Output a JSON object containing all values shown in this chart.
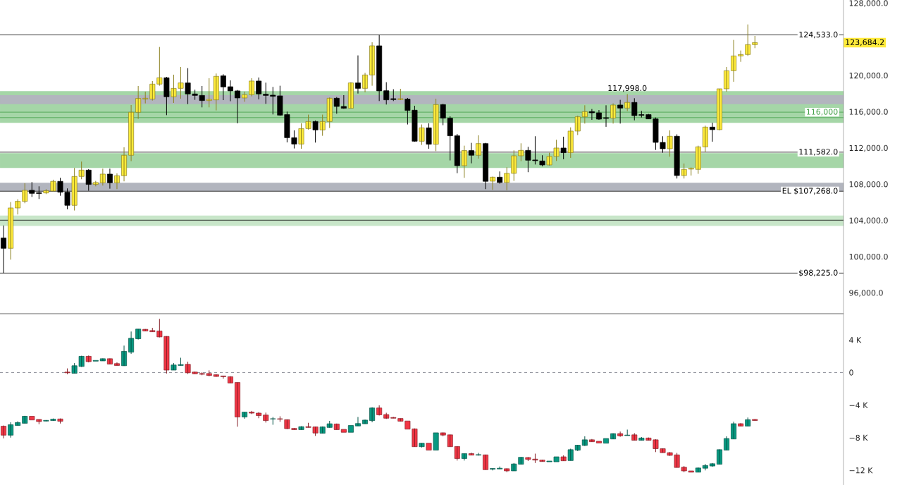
{
  "chart_data": [
    {
      "type": "candlestick",
      "categories": [
        null,
        null,
        null,
        null,
        null,
        null,
        null,
        null,
        null,
        null,
        null,
        null,
        null,
        null,
        null,
        null,
        null,
        null,
        null,
        null,
        null,
        null,
        null,
        null,
        null,
        null,
        null,
        null,
        null,
        null,
        null,
        null,
        null,
        null,
        null,
        null,
        null,
        null,
        null,
        null,
        null,
        null,
        null,
        null,
        null,
        null,
        null,
        null,
        null,
        null,
        null,
        null,
        null,
        null,
        null,
        null,
        null,
        null,
        null,
        null,
        null,
        null,
        null,
        null,
        null,
        null,
        null,
        null,
        null,
        null,
        null,
        null,
        null,
        null,
        null,
        null,
        null,
        null,
        null,
        null,
        null,
        null,
        null,
        null,
        null,
        null,
        null,
        null,
        null,
        null,
        null,
        null,
        null,
        null,
        null,
        null,
        null,
        null,
        null,
        null,
        null,
        null,
        null,
        null,
        null,
        null,
        null,
        null,
        null,
        null,
        null,
        null,
        null,
        null,
        null,
        null,
        null,
        null,
        null
      ],
      "ohlc": [
        [
          102100,
          103480,
          98225,
          100960
        ],
        [
          100960,
          106070,
          99710,
          105420
        ],
        [
          105420,
          106380,
          104700,
          106150
        ],
        [
          106150,
          108150,
          105940,
          107370
        ],
        [
          107370,
          108280,
          106640,
          107030
        ],
        [
          107110,
          107810,
          106410,
          107010
        ],
        [
          107080,
          107500,
          106950,
          107320
        ],
        [
          107290,
          108540,
          107240,
          108360
        ],
        [
          108360,
          108750,
          106770,
          107160
        ],
        [
          107160,
          107580,
          105270,
          105710
        ],
        [
          105710,
          109840,
          105140,
          108900
        ],
        [
          108900,
          110540,
          108590,
          109600
        ],
        [
          109600,
          109710,
          107320,
          108020
        ],
        [
          108020,
          108410,
          107810,
          108230
        ],
        [
          108200,
          109760,
          107890,
          109160
        ],
        [
          109160,
          109760,
          107550,
          108200
        ],
        [
          108200,
          109240,
          107500,
          108980
        ],
        [
          108980,
          112120,
          108360,
          111240
        ],
        [
          111240,
          116790,
          110590,
          115990
        ],
        [
          115990,
          118890,
          115260,
          117520
        ],
        [
          117440,
          118270,
          116970,
          117540
        ],
        [
          117440,
          119440,
          117280,
          119100
        ],
        [
          119100,
          123200,
          118920,
          119800
        ],
        [
          119800,
          119900,
          115670,
          117700
        ],
        [
          117700,
          120140,
          117020,
          118630
        ],
        [
          118630,
          120990,
          117490,
          119230
        ],
        [
          119230,
          120860,
          116890,
          118010
        ],
        [
          118010,
          118480,
          117360,
          117850
        ],
        [
          117850,
          118890,
          116530,
          117280
        ],
        [
          117280,
          119750,
          116530,
          117410
        ],
        [
          117360,
          120270,
          116190,
          119960
        ],
        [
          120010,
          120190,
          117330,
          118790
        ],
        [
          118810,
          119510,
          117210,
          118350
        ],
        [
          118350,
          118450,
          114770,
          117570
        ],
        [
          117570,
          118270,
          117150,
          117930
        ],
        [
          117930,
          119750,
          117750,
          119440
        ],
        [
          119440,
          119830,
          117410,
          118010
        ],
        [
          117980,
          119260,
          116920,
          117850
        ],
        [
          117880,
          118790,
          115750,
          117750
        ],
        [
          117800,
          118920,
          115600,
          115670
        ],
        [
          115730,
          116060,
          112660,
          113180
        ],
        [
          113180,
          113990,
          111990,
          112480
        ],
        [
          112480,
          114770,
          111960,
          114190
        ],
        [
          114190,
          115730,
          114070,
          114970
        ],
        [
          114970,
          115080,
          112640,
          114040
        ],
        [
          114040,
          115730,
          113390,
          114970
        ],
        [
          114970,
          117620,
          114250,
          117540
        ],
        [
          117540,
          117670,
          115830,
          116630
        ],
        [
          116630,
          117880,
          116370,
          116430
        ],
        [
          116430,
          119310,
          116400,
          119230
        ],
        [
          119230,
          122270,
          118060,
          118630
        ],
        [
          118630,
          120340,
          118190,
          120110
        ],
        [
          120110,
          123720,
          118920,
          123330
        ],
        [
          123330,
          124533,
          117230,
          118350
        ],
        [
          118370,
          119310,
          116840,
          117360
        ],
        [
          117490,
          118530,
          117230,
          117390
        ],
        [
          117390,
          118580,
          117330,
          117490
        ],
        [
          117440,
          117570,
          114640,
          116190
        ],
        [
          116220,
          116710,
          112740,
          112790
        ],
        [
          112790,
          114640,
          112380,
          114270
        ],
        [
          114270,
          114770,
          111960,
          112460
        ],
        [
          112460,
          117490,
          111700,
          116840
        ],
        [
          116840,
          116920,
          114560,
          115340
        ],
        [
          115340,
          115540,
          110670,
          113390
        ],
        [
          113390,
          113600,
          109260,
          110090
        ],
        [
          110090,
          112300,
          108750,
          111760
        ],
        [
          111760,
          112610,
          110350,
          111240
        ],
        [
          111240,
          113440,
          110870,
          112530
        ],
        [
          112530,
          112610,
          107500,
          108360
        ],
        [
          108380,
          108880,
          107420,
          108820
        ],
        [
          108820,
          109450,
          108100,
          108230
        ],
        [
          108230,
          109910,
          107370,
          109240
        ],
        [
          109240,
          111780,
          108410,
          111180
        ],
        [
          111180,
          112560,
          110590,
          111780
        ],
        [
          111780,
          112170,
          109370,
          110690
        ],
        [
          110720,
          113340,
          110220,
          110640
        ],
        [
          110610,
          111240,
          110020,
          110170
        ],
        [
          110170,
          111520,
          110090,
          111110
        ],
        [
          111110,
          112950,
          110610,
          112040
        ],
        [
          112040,
          113290,
          110800,
          111520
        ],
        [
          111520,
          114320,
          110950,
          113910
        ],
        [
          113910,
          115620,
          113470,
          115490
        ],
        [
          115490,
          116760,
          114740,
          116060
        ],
        [
          116060,
          116350,
          115150,
          115930
        ],
        [
          115930,
          116240,
          115150,
          115230
        ],
        [
          115390,
          116760,
          114380,
          115310
        ],
        [
          115340,
          116970,
          114740,
          116790
        ],
        [
          116790,
          117360,
          114740,
          116450
        ],
        [
          116450,
          117998,
          116120,
          117080
        ],
        [
          117080,
          117540,
          115100,
          115620
        ],
        [
          115730,
          116140,
          115410,
          115650
        ],
        [
          115730,
          115800,
          115230,
          115260
        ],
        [
          115260,
          115410,
          111830,
          112660
        ],
        [
          112660,
          113340,
          111520,
          111960
        ],
        [
          111960,
          113990,
          111080,
          113340
        ],
        [
          113340,
          113550,
          108670,
          109000
        ],
        [
          109000,
          110330,
          108670,
          109680
        ],
        [
          109710,
          109890,
          109000,
          109810
        ],
        [
          109680,
          112300,
          109190,
          112170
        ],
        [
          112170,
          114510,
          111570,
          114350
        ],
        [
          114350,
          114840,
          112740,
          114070
        ],
        [
          114070,
          118580,
          113990,
          118580
        ],
        [
          118580,
          120990,
          118270,
          120580
        ],
        [
          120580,
          123980,
          119360,
          122210
        ],
        [
          122210,
          122810,
          121560,
          122370
        ],
        [
          122370,
          125690,
          122210,
          123460
        ],
        [
          123460,
          124420,
          123070,
          123684.2
        ],
        null,
        null,
        null,
        null,
        null,
        null,
        null,
        null,
        null,
        null,
        null,
        null
      ],
      "colors": [
        "#000000",
        "#ffeb3b",
        "#ffeb3b",
        "#ffeb3b",
        "#000000",
        "#000000",
        "#ffeb3b",
        "#ffeb3b",
        "#000000",
        "#000000",
        "#ffeb3b",
        "#ffeb3b",
        "#000000",
        "#ffeb3b",
        "#ffeb3b",
        "#000000",
        "#ffeb3b",
        "#ffeb3b",
        "#ffeb3b",
        "#ffeb3b",
        "#ffeb3b",
        "#ffeb3b",
        "#ffeb3b",
        "#000000",
        "#ffeb3b",
        "#ffeb3b",
        "#000000",
        "#000000",
        "#000000",
        "#ffeb3b",
        "#ffeb3b",
        "#000000",
        "#000000",
        "#000000",
        "#ffeb3b",
        "#ffeb3b",
        "#000000",
        "#000000",
        "#000000",
        "#000000",
        "#000000",
        "#000000",
        "#ffeb3b",
        "#ffeb3b",
        "#000000",
        "#ffeb3b",
        "#ffeb3b",
        "#000000",
        "#000000",
        "#ffeb3b",
        "#000000",
        "#ffeb3b",
        "#ffeb3b",
        "#000000",
        "#000000",
        "#000000",
        "#ffeb3b",
        "#000000",
        "#000000",
        "#ffeb3b",
        "#000000",
        "#ffeb3b",
        "#000000",
        "#000000",
        "#000000",
        "#ffeb3b",
        "#000000",
        "#ffeb3b",
        "#000000",
        "#ffeb3b",
        "#000000",
        "#ffeb3b",
        "#ffeb3b",
        "#ffeb3b",
        "#000000",
        "#000000",
        "#000000",
        "#ffeb3b",
        "#ffeb3b",
        "#000000",
        "#ffeb3b",
        "#ffeb3b",
        "#ffeb3b",
        "#000000",
        "#000000",
        "#000000",
        "#ffeb3b",
        "#000000",
        "#ffeb3b",
        "#000000",
        "#000000",
        "#000000",
        "#000000",
        "#000000",
        "#ffeb3b",
        "#000000",
        "#ffeb3b",
        "#ffeb3b",
        "#ffeb3b",
        "#ffeb3b",
        "#000000",
        "#ffeb3b",
        "#ffeb3b",
        "#ffeb3b",
        "#ffeb3b",
        "#ffeb3b",
        "#ffeb3b",
        null,
        null,
        null,
        null,
        null,
        null,
        null,
        null,
        null,
        null,
        null,
        null
      ],
      "ylim": [
        93740,
        128390
      ],
      "yticks": [
        {
          "value": 96000,
          "label": "96,000.0"
        },
        {
          "value": 100000,
          "label": "100,000.0"
        },
        {
          "value": 104000,
          "label": "104,000.0"
        },
        {
          "value": 108000,
          "label": "108,000.0"
        },
        {
          "value": 112000,
          "label": "112,000.0"
        },
        {
          "value": 116000,
          "label": "116,000.0"
        },
        {
          "value": 120000,
          "label": "120,000.0"
        },
        {
          "value": 128000,
          "label": "128,000.0"
        }
      ],
      "tick_labels": "y",
      "bands": [
        {
          "axis": "y",
          "from": 103430,
          "to": 104590,
          "color": "#c8e6c9"
        },
        {
          "axis": "y",
          "from": 114820,
          "to": 118320,
          "color": "#a5d6a7"
        },
        {
          "axis": "y",
          "from": 109840,
          "to": 111470,
          "color": "#a5d6a7"
        },
        {
          "axis": "y",
          "from": 116890,
          "to": 117880,
          "color": "#b2b5be"
        },
        {
          "axis": "y",
          "from": 107290,
          "to": 108200,
          "color": "#b2b5be"
        }
      ],
      "ref_lines": [
        {
          "axis": "y",
          "value": 124533,
          "label": "124,533.0",
          "color": "#000000"
        },
        {
          "axis": "y",
          "value": 116000,
          "label": "116,000",
          "color": "#43a047"
        },
        {
          "axis": "y",
          "value": 115400,
          "color": "#43a047"
        },
        {
          "axis": "y",
          "value": 111582,
          "label": "111,582.0",
          "color": "#000000"
        },
        {
          "axis": "y",
          "value": 107268,
          "label": "EL $107,268.0",
          "color": "#000000"
        },
        {
          "axis": "y",
          "value": 104070,
          "color": "#000000"
        },
        {
          "axis": "y",
          "value": 98225,
          "label": "$98,225.0",
          "color": "#000000"
        }
      ],
      "annotations": [
        {
          "text": "117,998.0",
          "y": 117998
        },
        "123,684.2"
      ]
    },
    {
      "type": "candlestick",
      "categories": [
        null,
        null,
        null,
        null,
        null,
        null,
        null,
        null,
        null,
        null,
        null,
        null,
        null,
        null,
        null,
        null,
        null,
        null,
        null,
        null,
        null,
        null,
        null,
        null,
        null,
        null,
        null,
        null,
        null,
        null,
        null,
        null,
        null,
        null,
        null,
        null,
        null,
        null,
        null,
        null,
        null,
        null,
        null,
        null,
        null,
        null,
        null,
        null,
        null,
        null,
        null,
        null,
        null,
        null,
        null,
        null,
        null,
        null,
        null,
        null,
        null,
        null,
        null,
        null,
        null,
        null,
        null,
        null,
        null,
        null,
        null,
        null,
        null,
        null,
        null,
        null,
        null,
        null,
        null,
        null,
        null,
        null,
        null,
        null,
        null,
        null,
        null,
        null,
        null,
        null,
        null,
        null,
        null,
        null,
        null,
        null,
        null,
        null,
        null,
        null,
        null,
        null,
        null,
        null,
        null,
        null,
        null,
        null,
        null,
        null,
        null,
        null,
        null,
        null,
        null,
        null,
        null,
        null,
        null
      ],
      "ohlc": [
        [
          -6590,
          -6500,
          -8080,
          -7690
        ],
        [
          -7690,
          -6110,
          -7990,
          -6410
        ],
        [
          -6500,
          -5990,
          -6500,
          -6140
        ],
        [
          -6230,
          -5310,
          -6230,
          -5370
        ],
        [
          -5370,
          -5370,
          -5820,
          -5820
        ],
        [
          -5760,
          -5760,
          -6350,
          -6020
        ],
        [
          -5960,
          -5840,
          -5990,
          -5870
        ],
        [
          -5900,
          -5640,
          -5930,
          -5730
        ],
        [
          -5700,
          -5640,
          -6260,
          -5990
        ],
        [
          60,
          510,
          -210,
          -30
        ],
        [
          -90,
          1160,
          -90,
          840
        ],
        [
          750,
          2060,
          690,
          2000
        ],
        [
          2000,
          2090,
          1250,
          1340
        ],
        [
          1400,
          1490,
          1400,
          1490
        ],
        [
          1430,
          1730,
          1430,
          1700
        ],
        [
          1700,
          1730,
          1040,
          1040
        ],
        [
          1100,
          1250,
          870,
          870
        ],
        [
          840,
          3310,
          810,
          2600
        ],
        [
          2510,
          5040,
          2300,
          4210
        ],
        [
          4150,
          5340,
          4060,
          5340
        ],
        [
          5310,
          5340,
          5100,
          5100
        ],
        [
          5160,
          5490,
          5010,
          5010
        ],
        [
          5100,
          6590,
          4320,
          4380
        ],
        [
          4440,
          4470,
          -120,
          300
        ],
        [
          300,
          1160,
          300,
          930
        ],
        [
          870,
          1820,
          870,
          980
        ],
        [
          1010,
          1340,
          -180,
          -30
        ],
        [
          60,
          120,
          -150,
          -150
        ],
        [
          -120,
          30,
          -330,
          -210
        ],
        [
          -120,
          270,
          -450,
          -360
        ],
        [
          -270,
          -210,
          -510,
          -480
        ],
        [
          -420,
          -420,
          -750,
          -510
        ],
        [
          -510,
          -450,
          -1280,
          -1280
        ],
        [
          -1220,
          -1220,
          -6650,
          -5460
        ],
        [
          -5460,
          -4860,
          -5670,
          -4860
        ],
        [
          -4860,
          -4710,
          -5100,
          -4980
        ],
        [
          -4980,
          -4860,
          -5610,
          -5280
        ],
        [
          -5220,
          -4920,
          -6140,
          -5900
        ],
        [
          -5700,
          -5460,
          -6410,
          -5670
        ],
        [
          -5670,
          -5370,
          -6050,
          -5730
        ],
        [
          -5790,
          -5760,
          -6950,
          -6890
        ],
        [
          -6860,
          -6830,
          -7010,
          -7010
        ],
        [
          -7010,
          -6590,
          -7010,
          -6650
        ],
        [
          -6650,
          -6170,
          -6740,
          -6740
        ],
        [
          -6680,
          -6650,
          -7780,
          -7430
        ],
        [
          -7460,
          -6620,
          -7460,
          -6680
        ],
        [
          -6740,
          -5930,
          -6770,
          -6290
        ],
        [
          -6320,
          -6260,
          -7010,
          -7010
        ],
        [
          -6980,
          -6980,
          -7340,
          -7340
        ],
        [
          -7340,
          -6500,
          -7340,
          -6500
        ],
        [
          -6560,
          -5460,
          -6560,
          -6260
        ],
        [
          -6290,
          -5790,
          -6290,
          -5840
        ],
        [
          -5900,
          -4260,
          -6110,
          -4350
        ],
        [
          -4350,
          -4030,
          -5280,
          -5190
        ],
        [
          -5160,
          -4940,
          -5700,
          -5610
        ],
        [
          -5520,
          -5460,
          -5610,
          -5610
        ],
        [
          -5640,
          -5640,
          -6010,
          -5980
        ],
        [
          -5950,
          -5950,
          -6950,
          -6950
        ],
        [
          -6920,
          -6860,
          -9110,
          -9110
        ],
        [
          -9110,
          -8680,
          -9200,
          -8680
        ],
        [
          -8680,
          -8680,
          -9530,
          -9530
        ],
        [
          -9530,
          -7400,
          -9530,
          -7400
        ],
        [
          -7400,
          -7370,
          -7830,
          -7680
        ],
        [
          -7650,
          -7620,
          -9110,
          -9110
        ],
        [
          -9080,
          -9050,
          -10810,
          -10560
        ],
        [
          -10560,
          -9960,
          -10810,
          -9960
        ],
        [
          -9960,
          -9840,
          -10140,
          -10140
        ],
        [
          -10140,
          -9870,
          -10200,
          -10080
        ],
        [
          -10110,
          -10080,
          -11930,
          -11930
        ],
        [
          -11870,
          -11780,
          -12020,
          -11780
        ],
        [
          -11840,
          -11540,
          -11840,
          -11750
        ],
        [
          -11810,
          -11780,
          -12240,
          -12080
        ],
        [
          -12080,
          -11110,
          -12080,
          -11230
        ],
        [
          -11260,
          -10380,
          -11260,
          -10410
        ],
        [
          -10440,
          -10380,
          -10870,
          -10660
        ],
        [
          -10630,
          -9960,
          -11110,
          -10750
        ],
        [
          -10750,
          -10720,
          -10930,
          -10930
        ],
        [
          -10960,
          -10870,
          -10960,
          -10870
        ],
        [
          -10960,
          -10350,
          -10960,
          -10350
        ],
        [
          -10350,
          -10170,
          -10840,
          -10840
        ],
        [
          -10810,
          -9350,
          -10810,
          -9470
        ],
        [
          -9530,
          -8890,
          -9650,
          -8920
        ],
        [
          -8950,
          -7830,
          -9020,
          -8260
        ],
        [
          -8260,
          -8160,
          -8500,
          -8500
        ],
        [
          -8440,
          -8440,
          -8650,
          -8650
        ],
        [
          -8680,
          -8100,
          -8680,
          -8100
        ],
        [
          -8160,
          -7470,
          -8160,
          -7500
        ],
        [
          -7500,
          -7250,
          -7890,
          -7770
        ],
        [
          -7740,
          -7010,
          -7740,
          -7680
        ],
        [
          -7650,
          -7440,
          -8320,
          -8320
        ],
        [
          -8320,
          -7920,
          -8320,
          -8040
        ],
        [
          -8040,
          -7980,
          -8320,
          -8320
        ],
        [
          -8260,
          -8190,
          -9770,
          -9350
        ],
        [
          -9350,
          -9320,
          -9840,
          -9840
        ],
        [
          -9840,
          -9770,
          -10230,
          -10170
        ],
        [
          -10110,
          -9870,
          -11660,
          -11660
        ],
        [
          -11630,
          -11480,
          -12240,
          -12080
        ],
        [
          -12080,
          -12080,
          -12240,
          -12240
        ],
        [
          -12240,
          -11660,
          -12240,
          -11720
        ],
        [
          -11750,
          -11230,
          -12020,
          -11420
        ],
        [
          -11480,
          -11110,
          -11570,
          -11200
        ],
        [
          -11260,
          -9440,
          -11260,
          -9470
        ],
        [
          -9530,
          -7830,
          -9530,
          -8100
        ],
        [
          -8160,
          -6040,
          -8160,
          -6280
        ],
        [
          -6280,
          -6220,
          -6580,
          -6580
        ],
        [
          -6580,
          -5520,
          -6580,
          -5790
        ],
        [
          -5760,
          -5730,
          -5890,
          -5890
        ],
        null,
        null,
        null,
        null,
        null,
        null,
        null,
        null,
        null,
        null,
        null,
        null
      ],
      "colors": [
        "#f23645",
        "#089981",
        "#089981",
        "#089981",
        "#f23645",
        "#f23645",
        "#089981",
        "#089981",
        "#f23645",
        "#f23645",
        "#089981",
        "#089981",
        "#f23645",
        "#089981",
        "#089981",
        "#f23645",
        "#f23645",
        "#089981",
        "#089981",
        "#089981",
        "#f23645",
        "#f23645",
        "#f23645",
        "#f23645",
        "#089981",
        "#089981",
        "#f23645",
        "#f23645",
        "#f23645",
        "#f23645",
        "#f23645",
        "#f23645",
        "#f23645",
        "#f23645",
        "#089981",
        "#f23645",
        "#f23645",
        "#f23645",
        "#089981",
        "#f23645",
        "#f23645",
        "#f23645",
        "#089981",
        "#f23645",
        "#f23645",
        "#089981",
        "#089981",
        "#f23645",
        "#f23645",
        "#089981",
        "#089981",
        "#089981",
        "#089981",
        "#f23645",
        "#f23645",
        "#f23645",
        "#f23645",
        "#f23645",
        "#f23645",
        "#089981",
        "#f23645",
        "#089981",
        "#f23645",
        "#f23645",
        "#f23645",
        "#089981",
        "#f23645",
        "#089981",
        "#f23645",
        "#089981",
        "#089981",
        "#f23645",
        "#089981",
        "#089981",
        "#f23645",
        "#f23645",
        "#f23645",
        "#089981",
        "#089981",
        "#f23645",
        "#089981",
        "#089981",
        "#089981",
        "#f23645",
        "#f23645",
        "#089981",
        "#089981",
        "#f23645",
        "#089981",
        "#f23645",
        "#089981",
        "#f23645",
        "#f23645",
        "#f23645",
        "#f23645",
        "#f23645",
        "#f23645",
        "#f23645",
        "#089981",
        "#089981",
        "#089981",
        "#089981",
        "#089981",
        "#089981",
        "#f23645",
        "#089981",
        "#f23645",
        null,
        null,
        null,
        null,
        null,
        null,
        null,
        null,
        null,
        null,
        null,
        null
      ],
      "ylim": [
        -13810,
        7230
      ],
      "yticks": [
        {
          "value": -12000,
          "label": "−12 K"
        },
        {
          "value": -8000,
          "label": "−8 K"
        },
        {
          "value": -4000,
          "label": "−4 K"
        },
        0,
        {
          "value": 4000,
          "label": "4 K"
        }
      ],
      "tick_labels": "y",
      "ref_lines": [
        {
          "axis": "y",
          "value": 0,
          "color": "#787b86",
          "line_style": "dashed"
        }
      ]
    }
  ]
}
